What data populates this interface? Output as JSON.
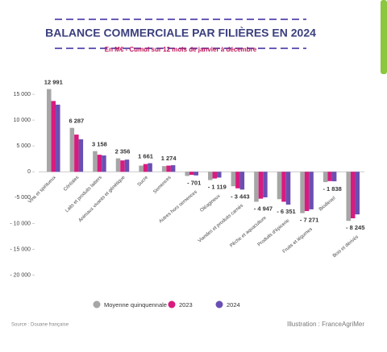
{
  "chart_data": {
    "type": "bar",
    "title": "BALANCE COMMERCIALE PAR FILIÈRES EN 2024",
    "subtitle": "En M€ - Cumul sur 12 mois de janvier à décembre",
    "categories": [
      "Vins et spiritueux",
      "Céréales",
      "Laits et produits laitiers",
      "Animaux vivants et génétique",
      "Sucre",
      "Semences",
      "Autres hors semences",
      "Oléagineux",
      "Viandes et produits carnés",
      "Pêche et aquaculture",
      "Produits d'épicerie",
      "Fruits et légumes",
      "Biodiesel",
      "Bois et dérivés"
    ],
    "series": [
      {
        "name": "Moyenne quinquennale",
        "color": "#a6a6a6",
        "values": [
          16000,
          8500,
          4000,
          2600,
          1200,
          1100,
          -800,
          -1600,
          -2800,
          -5800,
          -5300,
          -8000,
          -2000,
          -9500
        ]
      },
      {
        "name": "2023",
        "color": "#d81b7f",
        "values": [
          13700,
          7200,
          3300,
          2200,
          1500,
          1200,
          -600,
          -1300,
          -3200,
          -5200,
          -5800,
          -7600,
          -1800,
          -9000
        ]
      },
      {
        "name": "2024",
        "color": "#6a4fb3",
        "values": [
          12991,
          6287,
          3158,
          2356,
          1661,
          1274,
          -701,
          -1119,
          -3443,
          -4947,
          -6351,
          -7271,
          -1838,
          -8245
        ],
        "value_labels": [
          "12 991",
          "6 287",
          "3 158",
          "2 356",
          "1 661",
          "1 274",
          "- 701",
          "- 1 119",
          "- 3 443",
          "- 4 947",
          "- 6 351",
          "- 7 271",
          "- 1 838",
          "- 8 245"
        ]
      }
    ],
    "ylim": [
      -21000,
      17500
    ],
    "yticks": [
      {
        "value": 15000,
        "label": "15 000"
      },
      {
        "value": 10000,
        "label": "10 000"
      },
      {
        "value": 5000,
        "label": "5 000"
      },
      0,
      {
        "value": -5000,
        "label": "-5 000"
      },
      {
        "value": -10000,
        "label": "- 10 000"
      },
      {
        "value": -15000,
        "label": "- 15 000"
      },
      {
        "value": -20000,
        "label": "- 20 000"
      }
    ],
    "source": "Source : Douane française",
    "credit": "Illustration : FranceAgriMer"
  }
}
